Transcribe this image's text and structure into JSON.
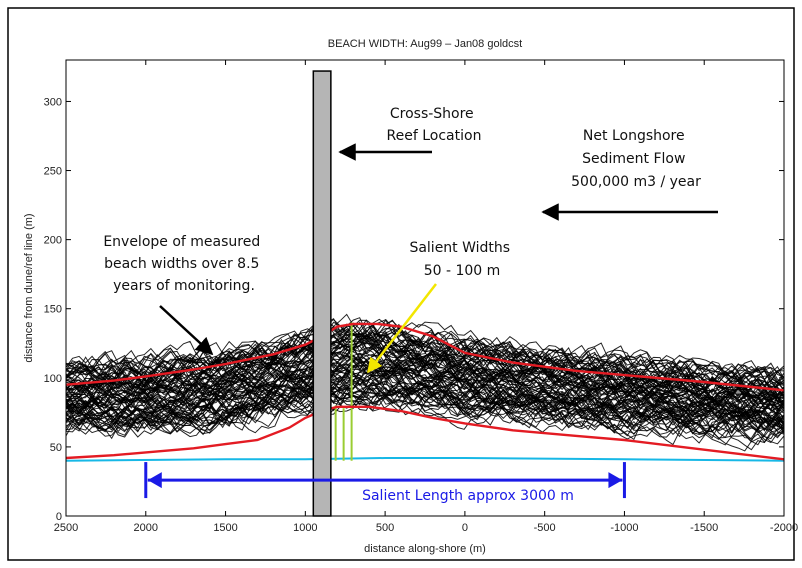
{
  "chart_data": {
    "type": "line",
    "title": "BEACH WIDTH: Aug99 – Jan08 goldcst",
    "xlabel": "distance along-shore (m)",
    "ylabel": "distance from dune/ref line (m)",
    "xlim": [
      2500,
      -2000
    ],
    "ylim": [
      0,
      330
    ],
    "x_reversed": true,
    "xticks": [
      2500,
      2000,
      1500,
      1000,
      500,
      0,
      -500,
      -1000,
      -1500,
      -2000
    ],
    "xtick_labels": [
      "2500",
      "2000",
      "1500",
      "1000",
      "500",
      "0",
      "-500",
      "-1000",
      "-1500",
      "-2000"
    ],
    "yticks": [
      0,
      50,
      100,
      150,
      200,
      250,
      300
    ],
    "ytick_labels": [
      "0",
      "50",
      "100",
      "150",
      "200",
      "250",
      "300"
    ],
    "grid": false,
    "colors": {
      "profiles": "#000000",
      "envelope": "#e31b23",
      "baseline": "#17b8e6",
      "salient_length": "#1a1ae6",
      "salient_width": "#9acd32",
      "reef": "#b5b5b5",
      "arrow_yellow": "#f2e600",
      "arrow_black": "#000000"
    },
    "profiles_band": {
      "x": [
        2500,
        2000,
        1500,
        1000,
        900,
        750,
        600,
        400,
        200,
        0,
        -500,
        -1000,
        -1500,
        -2000
      ],
      "lower": [
        65,
        63,
        68,
        78,
        80,
        82,
        82,
        80,
        77,
        74,
        70,
        66,
        62,
        60
      ],
      "upper": [
        110,
        112,
        118,
        130,
        134,
        138,
        138,
        135,
        130,
        126,
        118,
        112,
        106,
        102
      ]
    },
    "series": [
      {
        "x": [
          2500,
          2200,
          2000,
          1700,
          1500,
          1200,
          1000,
          900,
          800,
          700,
          550,
          400,
          200,
          0,
          -300,
          -700,
          -1000,
          -1500,
          -2000
        ],
        "values": [
          95,
          98,
          101,
          106,
          110,
          117,
          124,
          130,
          137,
          139,
          139,
          137,
          130,
          118,
          111,
          105,
          102,
          97,
          91
        ]
      },
      {
        "x": [
          2500,
          2200,
          2000,
          1700,
          1500,
          1300,
          1100,
          1000,
          900,
          800,
          700,
          600,
          400,
          200,
          0,
          -300,
          -700,
          -1000,
          -1500,
          -2000
        ],
        "values": [
          42,
          44,
          46,
          49,
          52,
          55,
          64,
          71,
          76,
          79,
          79,
          79,
          76,
          71,
          67,
          62,
          58,
          55,
          48,
          41
        ]
      },
      {
        "x": [
          2500,
          1500,
          1000,
          500,
          0,
          -1000,
          -2000
        ],
        "values": [
          40,
          41,
          41,
          42,
          42,
          41,
          40
        ]
      }
    ],
    "reef": {
      "x_min": 950,
      "x_max": 840,
      "y_top": 322
    },
    "salient_width_lines": [
      {
        "x": 810,
        "y_min": 40,
        "y_max": 80
      },
      {
        "x": 760,
        "y_min": 40,
        "y_max": 78
      },
      {
        "x": 710,
        "y_min": 40,
        "y_max": 140
      }
    ],
    "salient_length": {
      "x_start": 2000,
      "x_end": -1000,
      "y": 26
    },
    "annotations": {
      "reef_location": [
        "Cross-Shore",
        "Reef Location"
      ],
      "longshore": [
        "Net Longshore",
        "Sediment Flow",
        "500,000 m3 / year"
      ],
      "envelope": [
        "Envelope of measured",
        "beach widths over 8.5",
        "years of monitoring."
      ],
      "salient_widths": [
        "Salient Widths",
        "50 - 100 m"
      ],
      "salient_length": "Salient Length approx 3000 m"
    }
  }
}
